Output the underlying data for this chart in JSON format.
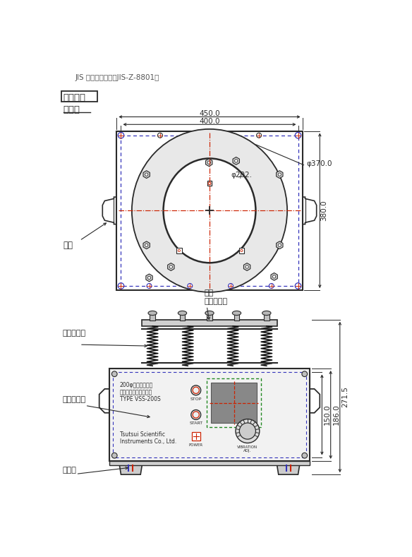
{
  "title_top": "JIS 試験用ふるい（JIS-Z-8801）",
  "section_label": "各部名称",
  "body_label": "本　体",
  "label_totte": "取手",
  "label_spring": "スプリング",
  "label_panel": "操作パネル",
  "label_uke": "受け\n（振動洿）",
  "label_gomu": "ゴム足",
  "dim_450": "450.0",
  "dim_400": "400.0",
  "dim_380": "380.0",
  "dim_phi370": "φ370.0",
  "dim_phi202": "φ202.",
  "dim_150": "150.0",
  "dim_186": "186.0",
  "dim_271": "271.5",
  "panel_text1": "200φ試験ふるい用",
  "panel_text2": "机上型ふるい振とう機",
  "panel_text3": "TYPE VSS-200S",
  "panel_text4": "Tsutsui Scientific\nInstruments Co., Ltd.",
  "stop_label": "STOP",
  "start_label": "START",
  "power_label": "POWER",
  "vibration_label": "VIBRATION\nADJ.",
  "bg_color": "#ffffff",
  "line_color": "#2a2a2a",
  "dim_color": "#2a2a2a",
  "blue_color": "#3333bb",
  "red_color": "#cc2200",
  "spring_color": "#111111",
  "body_fill": "#f0f0f0",
  "panel_fill": "#e8e8e8",
  "circle_fill": "#e0e0e0",
  "inner_fill": "#d0d0d0"
}
